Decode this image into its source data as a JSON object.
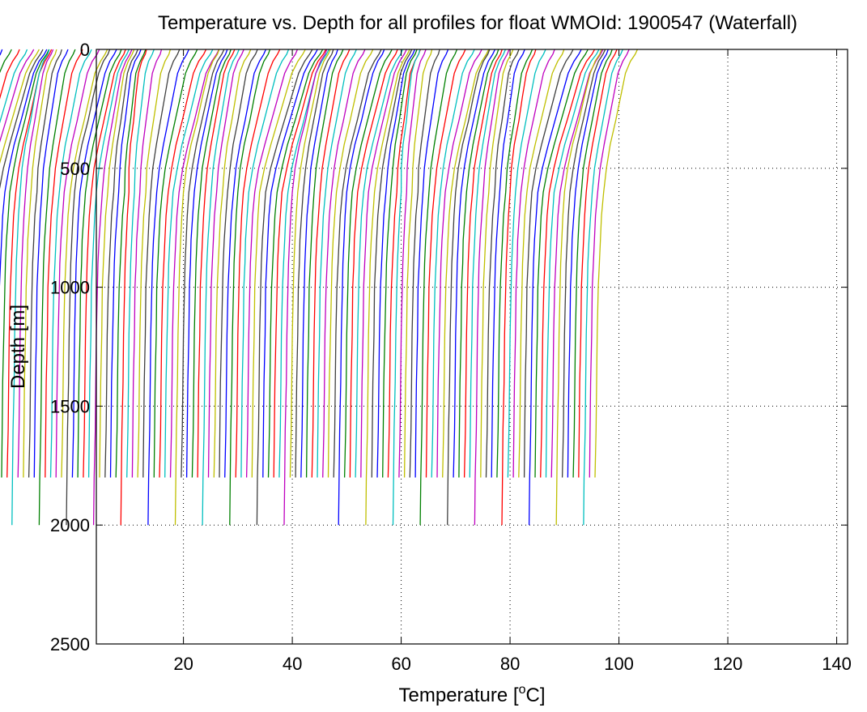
{
  "chart_data": {
    "type": "line",
    "title": "Temperature vs. Depth for all profiles for float WMOId: 1900547 (Waterfall)",
    "xlabel_main": "Temperature [",
    "xlabel_sup": "o",
    "xlabel_end": "C]",
    "ylabel": "Depth [m]",
    "xlim": [
      4,
      142
    ],
    "ylim": [
      2500,
      0
    ],
    "y_reversed": true,
    "grid": true,
    "grid_style": "dotted",
    "xticks": [
      20,
      40,
      60,
      80,
      100,
      120,
      140
    ],
    "yticks": [
      0,
      500,
      1000,
      1500,
      2000,
      2500
    ],
    "xtick_labels": [
      "20",
      "40",
      "60",
      "80",
      "100",
      "120",
      "140"
    ],
    "ytick_labels": [
      "0",
      "500",
      "1000",
      "1500",
      "2000",
      "2500"
    ],
    "series_colors": [
      "#0000ff",
      "#008000",
      "#ff0000",
      "#00bfbf",
      "#bf00bf",
      "#bfbf00",
      "#404040"
    ],
    "profile_depths": [
      0,
      20,
      50,
      100,
      200,
      300,
      400,
      500,
      600,
      700,
      800,
      900,
      1000,
      1200,
      1400,
      1600,
      1800,
      2000
    ],
    "profiles": [
      {
        "offset": 0,
        "temps": [
          30.9,
          30.6,
          29.8,
          29.0,
          28.1,
          27.3,
          26.3,
          25.6,
          25.2,
          24.9,
          24.7,
          24.5,
          24.4,
          24.2,
          24.1,
          23.9,
          23.8,
          23.7
        ]
      },
      {
        "offset": 2,
        "temps": [
          31.1,
          30.7,
          29.9,
          29.1,
          28.2,
          27.3,
          26.4,
          25.7,
          25.2,
          24.9,
          24.7,
          24.5,
          24.4,
          24.2,
          24.1,
          24.0,
          23.8,
          23.7
        ]
      },
      {
        "offset": 4,
        "temps": [
          31.2,
          30.9,
          30.1,
          29.2,
          28.3,
          27.4,
          26.5,
          25.8,
          25.3,
          25.0,
          24.7,
          24.6,
          24.4,
          24.3,
          24.1,
          24.0,
          23.9,
          23.8
        ]
      },
      {
        "offset": 6,
        "temps": [
          31.3,
          31.0,
          30.2,
          29.3,
          28.4,
          27.5,
          26.6,
          25.8,
          25.4,
          25.0,
          24.8,
          24.6,
          24.5,
          24.3,
          24.2,
          24.1,
          23.9,
          23.8
        ]
      },
      {
        "offset": 8,
        "temps": [
          31.5,
          31.1,
          30.3,
          29.4,
          28.5,
          27.6,
          26.7,
          25.9,
          25.4,
          25.1,
          24.9,
          24.7,
          24.5,
          24.4,
          24.2,
          24.1,
          24.0,
          23.9
        ]
      },
      {
        "offset": 10,
        "temps": [
          31.6,
          31.2,
          30.4,
          29.5,
          28.6,
          27.7,
          26.8,
          26.0,
          25.5,
          25.2,
          24.9,
          24.7,
          24.6,
          24.4,
          24.3,
          24.2,
          24.0,
          23.9
        ]
      },
      {
        "offset": 12,
        "temps": [
          31.7,
          31.3,
          30.5,
          29.6,
          28.7,
          27.8,
          26.9,
          26.1,
          25.6,
          25.2,
          25.0,
          24.8,
          24.6,
          24.5,
          24.3,
          24.2,
          24.1,
          24.0
        ]
      },
      {
        "offset": 14,
        "temps": [
          31.9,
          31.5,
          30.6,
          29.7,
          28.8,
          27.9,
          26.9,
          26.2,
          25.7,
          25.3,
          25.1,
          24.9,
          24.7,
          24.5,
          24.4,
          24.3,
          24.1,
          24.0
        ]
      },
      {
        "offset": 16,
        "temps": [
          32.0,
          31.6,
          30.7,
          29.8,
          28.9,
          28.0,
          27.0,
          26.3,
          25.7,
          25.4,
          25.1,
          24.9,
          24.8,
          24.6,
          24.4,
          24.3,
          24.2,
          24.1
        ]
      },
      {
        "offset": 18,
        "temps": [
          32.1,
          31.7,
          30.9,
          29.9,
          29.0,
          28.1,
          27.1,
          26.3,
          25.8,
          25.4,
          25.2,
          25.0,
          24.8,
          24.6,
          24.5,
          24.4,
          24.2,
          24.1
        ]
      }
    ],
    "profile_count": 118,
    "profile_spacing": 1.0,
    "min_offset": -21.5
  }
}
